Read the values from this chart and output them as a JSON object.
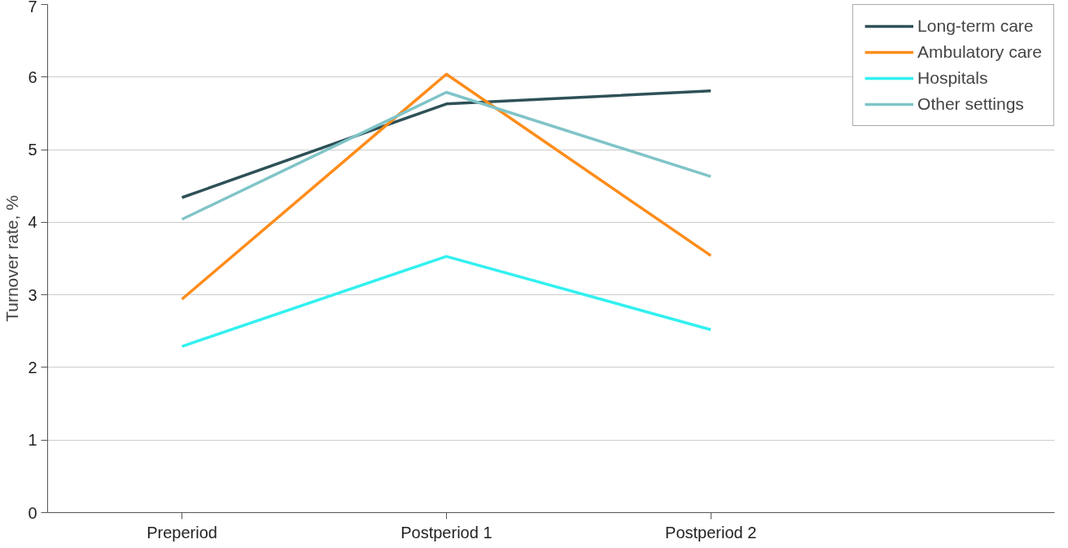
{
  "chart_data": {
    "type": "line",
    "ylabel": "Turnover rate, %",
    "categories": [
      "Preperiod",
      "Postperiod 1",
      "Postperiod 2"
    ],
    "series": [
      {
        "name": "Long-term care",
        "color": "#2e5157",
        "values": [
          4.34,
          5.63,
          5.81
        ]
      },
      {
        "name": "Ambulatory care",
        "color": "#ff8c1a",
        "values": [
          2.94,
          6.04,
          3.54
        ]
      },
      {
        "name": "Hospitals",
        "color": "#33f0f0",
        "values": [
          2.29,
          3.53,
          2.52
        ]
      },
      {
        "name": "Other settings",
        "color": "#80c4c8",
        "values": [
          4.04,
          5.79,
          4.63
        ]
      }
    ],
    "ylim": [
      0,
      7
    ],
    "yticks": [
      0,
      1,
      2,
      3,
      4,
      5,
      6,
      7
    ],
    "grid": "y",
    "legend": "top right",
    "marker": "none",
    "line_style": "solid"
  }
}
